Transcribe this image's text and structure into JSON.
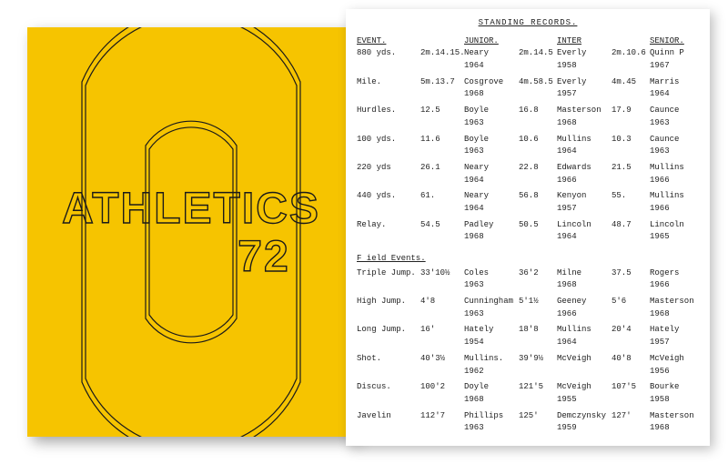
{
  "cover": {
    "line1": "ATHLETICS",
    "line2": "72",
    "bg_color": "#f6c400",
    "stroke_color": "#1a1a1a"
  },
  "records": {
    "title": "STANDING RECORDS.",
    "headers": {
      "event": "EVENT.",
      "junior": "JUNIOR.",
      "inter": "INTER",
      "senior": "SENIOR."
    },
    "track": [
      {
        "event": "880 yds.",
        "j": "2m.14.15.",
        "jn": "Neary",
        "jy": "1964",
        "i": "2m.14.5",
        "in": "Everly",
        "iy": "1958",
        "s": "2m.10.6",
        "sn": "Quinn P",
        "sy": "1967"
      },
      {
        "event": "Mile.",
        "j": "5m.13.7",
        "jn": "Cosgrove",
        "jy": "1968",
        "i": "4m.58.5",
        "in": "Everly",
        "iy": "1957",
        "s": "4m.45",
        "sn": "Marris",
        "sy": "1964"
      },
      {
        "event": "Hurdles.",
        "j": "12.5",
        "jn": "Boyle",
        "jy": "1963",
        "i": "16.8",
        "in": "Masterson",
        "iy": "1968",
        "s": "17.9",
        "sn": "Caunce",
        "sy": "1963"
      },
      {
        "event": "100 yds.",
        "j": "11.6",
        "jn": "Boyle",
        "jy": "1963",
        "i": "10.6",
        "in": "Mullins",
        "iy": "1964",
        "s": "10.3",
        "sn": "Caunce",
        "sy": "1963"
      },
      {
        "event": "220 yds",
        "j": "26.1",
        "jn": "Neary",
        "jy": "1964",
        "i": "22.8",
        "in": "Edwards",
        "iy": "1966",
        "s": "21.5",
        "sn": "Mullins",
        "sy": "1966"
      },
      {
        "event": "440 yds.",
        "j": "61.",
        "jn": "Neary",
        "jy": "1964",
        "i": "56.8",
        "in": "Kenyon",
        "iy": "1957",
        "s": "55.",
        "sn": "Mullins",
        "sy": "1966"
      },
      {
        "event": "Relay.",
        "j": "54.5",
        "jn": "Padley",
        "jy": "1968",
        "i": "50.5",
        "in": "Lincoln",
        "iy": "1964",
        "s": "48.7",
        "sn": "Lincoln",
        "sy": "1965"
      }
    ],
    "field_label": "F ield Events.",
    "field": [
      {
        "event": "Triple Jump.",
        "j": "33'10½",
        "jn": "Coles",
        "jy": "1963",
        "i": "36'2",
        "in": "Milne",
        "iy": "1968",
        "s": "37.5",
        "sn": "Rogers",
        "sy": "1966"
      },
      {
        "event": "High Jump.",
        "j": "4'8",
        "jn": "Cunningham",
        "jy": "1963",
        "i": "5'1½",
        "in": "Geeney",
        "iy": "1966",
        "s": "5'6",
        "sn": "Masterson",
        "sy": "1968"
      },
      {
        "event": "Long Jump.",
        "j": "16'",
        "jn": "Hately",
        "jy": "1954",
        "i": "18'8",
        "in": "Mullins",
        "iy": "1964",
        "s": "20'4",
        "sn": "Hately",
        "sy": "1957"
      },
      {
        "event": "Shot.",
        "j": "40'3½",
        "jn": "Mullins.",
        "jy": "1962",
        "i": "39'9½",
        "in": "McVeigh",
        "iy": "",
        "s": "40'8",
        "sn": "McVeigh",
        "sy": "1956"
      },
      {
        "event": "Discus.",
        "j": "100'2",
        "jn": "Doyle",
        "jy": "1968",
        "i": "121'5",
        "in": "McVeigh",
        "iy": "1955",
        "s": "107'5",
        "sn": "Bourke",
        "sy": "1958"
      },
      {
        "event": "Javelin",
        "j": "112'7",
        "jn": "Phillips",
        "jy": "1963",
        "i": "125'",
        "in": "Demczynsky",
        "iy": "1959",
        "s": "127'",
        "sn": "Masterson",
        "sy": "1968"
      }
    ]
  }
}
